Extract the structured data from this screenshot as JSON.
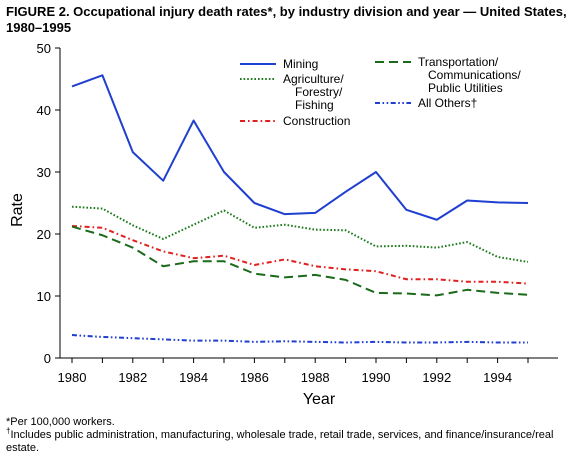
{
  "chart_data": {
    "type": "line",
    "title": "FIGURE 2. Occupational injury death rates*, by industry division and year — United States, 1980–1995",
    "xlabel": "Year",
    "ylabel": "Rate",
    "xlim": [
      1980,
      1995
    ],
    "ylim": [
      0,
      50
    ],
    "x_ticks": [
      "1980",
      "1982",
      "1984",
      "1986",
      "1988",
      "1990",
      "1992",
      "1994"
    ],
    "y_ticks": [
      "0",
      "10",
      "20",
      "30",
      "40",
      "50"
    ],
    "grid": false,
    "legend_position": "top-right",
    "x": [
      1980,
      1981,
      1982,
      1983,
      1984,
      1985,
      1986,
      1987,
      1988,
      1989,
      1990,
      1991,
      1992,
      1993,
      1994,
      1995
    ],
    "series": [
      {
        "name": "Mining",
        "color": "#1f3fd0",
        "dash": "solid",
        "values": [
          43.8,
          45.6,
          33.2,
          28.6,
          38.3,
          30.0,
          25.0,
          23.2,
          23.4,
          26.8,
          30.0,
          23.9,
          22.3,
          25.4,
          25.1,
          25.0
        ]
      },
      {
        "name": "Agriculture/ Forestry/ Fishing",
        "label_lines": [
          "Agriculture/",
          "Forestry/",
          "Fishing"
        ],
        "color": "#1a7a1a",
        "dash": "dotted",
        "values": [
          24.4,
          24.1,
          21.4,
          19.2,
          21.5,
          23.8,
          21.0,
          21.5,
          20.7,
          20.6,
          18.0,
          18.1,
          17.8,
          18.7,
          16.3,
          15.5
        ]
      },
      {
        "name": "Construction",
        "label_lines": [
          "Construction"
        ],
        "color": "#e02020",
        "dash": "dashdot",
        "values": [
          21.3,
          21.0,
          19.0,
          17.2,
          16.1,
          16.5,
          15.0,
          15.9,
          14.8,
          14.3,
          14.0,
          12.7,
          12.7,
          12.3,
          12.3,
          12.0
        ]
      },
      {
        "name": "Transportation/ Communications/ Public Utilities",
        "label_lines": [
          "Transportation/",
          "Communications/",
          "Public Utilities"
        ],
        "color": "#1a6a1a",
        "dash": "dashed",
        "values": [
          21.2,
          19.8,
          17.8,
          14.8,
          15.6,
          15.6,
          13.6,
          13.0,
          13.4,
          12.6,
          10.5,
          10.4,
          10.1,
          11.0,
          10.5,
          10.2
        ]
      },
      {
        "name": "All Others†",
        "label_lines": [
          "All Others†"
        ],
        "color": "#1f3fd0",
        "dash": "dashdotdot",
        "values": [
          3.7,
          3.4,
          3.2,
          3.0,
          2.8,
          2.8,
          2.6,
          2.7,
          2.6,
          2.5,
          2.6,
          2.5,
          2.5,
          2.6,
          2.5,
          2.5
        ]
      }
    ]
  },
  "footnotes": {
    "star": "*Per 100,000 workers.",
    "dagger_mark": "†",
    "dagger_text": "Includes public administration, manufacturing, wholesale trade, retail trade, services, and finance/insurance/real estate."
  }
}
